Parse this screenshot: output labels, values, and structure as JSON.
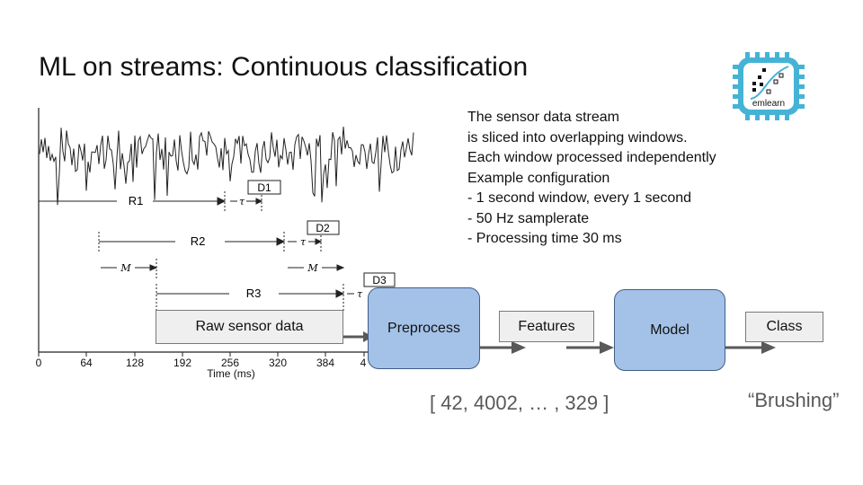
{
  "slide": {
    "title": "ML on streams: Continuous classification",
    "description_lines": [
      "The sensor data stream",
      "is sliced into overlapping windows.",
      "Each window processed independently",
      "",
      "Example configuration",
      "- 1 second window, every 1 second",
      "- 50 Hz samplerate",
      "- Processing time 30 ms"
    ]
  },
  "logo": {
    "text": "emlearn",
    "icon": "emlearn-chip-logo-icon"
  },
  "figure": {
    "x_ticks": [
      "0",
      "64",
      "128",
      "192",
      "256",
      "320",
      "384",
      "4"
    ],
    "x_label": "Time (ms)",
    "windows": [
      "R1",
      "R2",
      "R3"
    ],
    "delays": [
      "D1",
      "D2",
      "D3"
    ],
    "tau": "τ",
    "m": "M"
  },
  "pipeline": {
    "raw": "Raw sensor data",
    "preprocess": "Preprocess",
    "features": "Features",
    "model": "Model",
    "class": "Class"
  },
  "outputs": {
    "feature_vector": "[ 42, 4002, … , 329 ]",
    "class_label": "“Brushing”"
  },
  "colors": {
    "blue_box": "#a4c2e8",
    "gray_box": "#efefef",
    "arrow": "#595959"
  }
}
